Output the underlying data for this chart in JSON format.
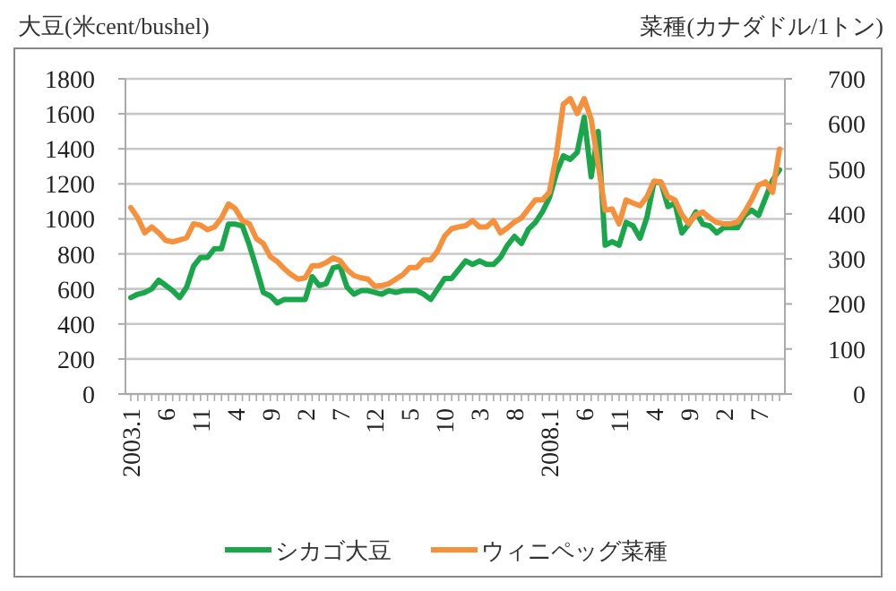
{
  "chart_data": {
    "type": "line",
    "ylabel": "大豆(米cent/bushel)",
    "y2label": "菜種(カナダドル/1トン)",
    "categories": [
      "2003.1",
      null,
      null,
      null,
      null,
      "6",
      null,
      null,
      null,
      null,
      "11",
      null,
      null,
      null,
      null,
      "4",
      null,
      null,
      null,
      null,
      "9",
      null,
      null,
      null,
      null,
      "2",
      null,
      null,
      null,
      null,
      "7",
      null,
      null,
      null,
      null,
      "12",
      null,
      null,
      null,
      null,
      "5",
      null,
      null,
      null,
      null,
      "10",
      null,
      null,
      null,
      null,
      "3",
      null,
      null,
      null,
      null,
      "8",
      null,
      null,
      null,
      null,
      "2008.1",
      null,
      null,
      null,
      null,
      "6",
      null,
      null,
      null,
      null,
      "11",
      null,
      null,
      null,
      null,
      "4",
      null,
      null,
      null,
      null,
      "9",
      null,
      null,
      null,
      null,
      "2",
      null,
      null,
      null,
      null,
      "7",
      null,
      null,
      null
    ],
    "series": [
      {
        "name": "シカゴ大豆",
        "color": "#1aa64a",
        "values": [
          550,
          570,
          580,
          600,
          650,
          620,
          590,
          550,
          610,
          730,
          780,
          780,
          830,
          830,
          970,
          970,
          960,
          850,
          720,
          580,
          560,
          520,
          540,
          540,
          540,
          540,
          670,
          620,
          630,
          720,
          730,
          610,
          570,
          590,
          590,
          580,
          570,
          590,
          580,
          590,
          590,
          590,
          570,
          540,
          600,
          660,
          660,
          710,
          760,
          740,
          760,
          740,
          740,
          780,
          850,
          900,
          860,
          940,
          980,
          1040,
          1120,
          1260,
          1360,
          1340,
          1380,
          1580,
          1240,
          1500,
          850,
          870,
          850,
          980,
          960,
          890,
          1010,
          1210,
          1210,
          1070,
          1090,
          920,
          970,
          1040,
          970,
          960,
          920,
          950,
          950,
          950,
          1020,
          1050,
          1020,
          1120,
          1220,
          1280
        ]
      },
      {
        "name": "ウィニペッグ菜種",
        "color": "#f5913c",
        "axis": "y2",
        "values": [
          414,
          391,
          358,
          371,
          358,
          341,
          338,
          342,
          347,
          378,
          375,
          365,
          371,
          391,
          422,
          411,
          385,
          378,
          345,
          334,
          305,
          294,
          278,
          265,
          255,
          258,
          285,
          285,
          292,
          302,
          296,
          276,
          263,
          258,
          255,
          239,
          241,
          245,
          255,
          265,
          281,
          281,
          298,
          298,
          318,
          351,
          367,
          371,
          374,
          385,
          371,
          371,
          385,
          358,
          369,
          382,
          391,
          411,
          431,
          431,
          448,
          530,
          643,
          656,
          623,
          656,
          610,
          510,
          408,
          411,
          378,
          431,
          424,
          418,
          438,
          473,
          471,
          438,
          431,
          398,
          378,
          398,
          404,
          391,
          381,
          378,
          378,
          382,
          404,
          431,
          464,
          471,
          448,
          544
        ]
      }
    ],
    "ylim": [
      0,
      1800
    ],
    "yticks": [
      0,
      200,
      400,
      600,
      800,
      1000,
      1200,
      1400,
      1600,
      1800
    ],
    "y2lim": [
      0,
      700
    ],
    "y2ticks": [
      0,
      100,
      200,
      300,
      400,
      500,
      600,
      700
    ],
    "grid": "y",
    "legend": "bottom"
  }
}
